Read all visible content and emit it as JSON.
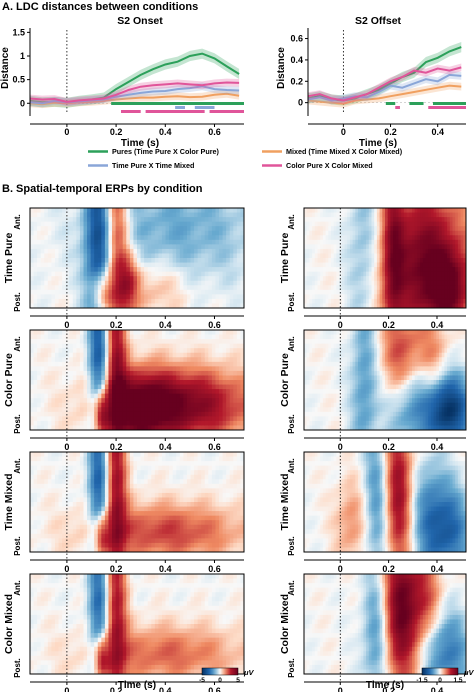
{
  "section_a": {
    "title": "A. LDC distances between conditions"
  },
  "section_b": {
    "title": "B. Spatial-temporal ERPs by condition"
  },
  "colors": {
    "pures": "#2ca05a",
    "mixed": "#f0a060",
    "time_pure_x_time_mixed": "#8aa6d8",
    "color_pure_x_color_mixed": "#e0559a",
    "heatmap_negative": "#1a5fa8",
    "heatmap_positive": "#a50d1c"
  },
  "legend": [
    {
      "label": "Pures (Time Pure X Color Pure)",
      "color_key": "pures"
    },
    {
      "label": "Mixed (Time Mixed X Color Mixed)",
      "color_key": "mixed"
    },
    {
      "label": "Time Pure X Time Mixed",
      "color_key": "time_pure_x_time_mixed"
    },
    {
      "label": "Color Pure X Color Mixed",
      "color_key": "color_pure_x_color_mixed"
    }
  ],
  "erp_rows": [
    {
      "label": "Time Pure"
    },
    {
      "label": "Color Pure"
    },
    {
      "label": "Time Mixed"
    },
    {
      "label": "Color Mixed"
    }
  ],
  "erp_ylabels": {
    "top": "Ant.",
    "bottom": "Post."
  },
  "erp_xlabel": "Time (s)",
  "colorbars": [
    {
      "min_label": "-5",
      "mid_label": "0",
      "max_label": "5",
      "unit": "μV"
    },
    {
      "min_label": "-1.5",
      "mid_label": "0",
      "max_label": "1.5",
      "unit": "μV"
    }
  ],
  "chart_data": [
    {
      "type": "line",
      "title": "S2 Onset",
      "xlabel": "Time (s)",
      "ylabel": "Distance",
      "xlim": [
        -0.15,
        0.72
      ],
      "ylim": [
        -0.1,
        1.55
      ],
      "xticks": [
        0,
        0.2,
        0.4,
        0.6
      ],
      "xtick_labels": [
        "0",
        "0.2",
        "0.4",
        "0.6"
      ],
      "yticks": [
        0,
        0.5,
        1,
        1.5
      ],
      "ytick_labels": [
        "0",
        "0.5",
        "1",
        "1.5"
      ],
      "x": [
        -0.15,
        -0.1,
        -0.05,
        0,
        0.05,
        0.1,
        0.15,
        0.2,
        0.25,
        0.3,
        0.35,
        0.4,
        0.45,
        0.5,
        0.55,
        0.6,
        0.65,
        0.7
      ],
      "series": [
        {
          "name": "Pures (Time Pure X Color Pure)",
          "color_key": "pures",
          "values": [
            0.05,
            0.02,
            0.03,
            0.01,
            0.05,
            0.08,
            0.12,
            0.3,
            0.45,
            0.6,
            0.72,
            0.82,
            0.88,
            1.0,
            1.05,
            0.95,
            0.78,
            0.62
          ]
        },
        {
          "name": "Mixed (Time Mixed X Color Mixed)",
          "color_key": "mixed",
          "values": [
            0.0,
            -0.02,
            0.01,
            0.0,
            0.02,
            0.03,
            0.05,
            0.08,
            0.1,
            0.12,
            0.12,
            0.14,
            0.15,
            0.13,
            0.14,
            0.18,
            0.2,
            0.16
          ]
        },
        {
          "name": "Time Pure X Time Mixed",
          "color_key": "time_pure_x_time_mixed",
          "values": [
            0.02,
            0.0,
            0.05,
            0.02,
            0.04,
            0.06,
            0.08,
            0.14,
            0.18,
            0.22,
            0.25,
            0.26,
            0.3,
            0.32,
            0.36,
            0.3,
            0.28,
            0.27
          ]
        },
        {
          "name": "Color Pure X Color Mixed",
          "color_key": "color_pure_x_color_mixed",
          "values": [
            0.1,
            0.08,
            0.09,
            0.03,
            0.06,
            0.08,
            0.1,
            0.18,
            0.28,
            0.35,
            0.38,
            0.4,
            0.42,
            0.4,
            0.38,
            0.42,
            0.44,
            0.43
          ]
        }
      ],
      "significance_bars": [
        {
          "color_key": "pures",
          "ranges": [
            [
              0.18,
              0.72
            ]
          ]
        },
        {
          "color_key": "time_pure_x_time_mixed",
          "ranges": [
            [
              0.44,
              0.48
            ],
            [
              0.52,
              0.6
            ]
          ]
        },
        {
          "color_key": "color_pure_x_color_mixed",
          "ranges": [
            [
              0.22,
              0.3
            ],
            [
              0.32,
              0.56
            ],
            [
              0.58,
              0.72
            ]
          ]
        }
      ]
    },
    {
      "type": "line",
      "title": "S2 Offset",
      "xlabel": "Time (s)",
      "ylabel": "Distance",
      "xlim": [
        -0.15,
        0.52
      ],
      "ylim": [
        -0.05,
        0.68
      ],
      "xticks": [
        0,
        0.2,
        0.4
      ],
      "xtick_labels": [
        "0",
        "0.2",
        "0.4"
      ],
      "yticks": [
        0,
        0.2,
        0.4,
        0.6
      ],
      "ytick_labels": [
        "0",
        "0.2",
        "0.4",
        "0.6"
      ],
      "x": [
        -0.15,
        -0.1,
        -0.05,
        0,
        0.05,
        0.1,
        0.15,
        0.2,
        0.25,
        0.3,
        0.35,
        0.4,
        0.45,
        0.5
      ],
      "series": [
        {
          "name": "Pures (Time Pure X Color Pure)",
          "color_key": "pures",
          "values": [
            0.04,
            0.06,
            0.03,
            0.02,
            0.04,
            0.08,
            0.12,
            0.18,
            0.24,
            0.28,
            0.38,
            0.42,
            0.48,
            0.52
          ]
        },
        {
          "name": "Mixed (Time Mixed X Color Mixed)",
          "color_key": "mixed",
          "values": [
            0.02,
            0.01,
            0.0,
            -0.01,
            0.02,
            0.03,
            0.04,
            0.06,
            0.08,
            0.1,
            0.12,
            0.14,
            0.16,
            0.15
          ]
        },
        {
          "name": "Time Pure X Time Mixed",
          "color_key": "time_pure_x_time_mixed",
          "values": [
            0.03,
            0.05,
            0.02,
            0.04,
            0.06,
            0.05,
            0.1,
            0.16,
            0.14,
            0.18,
            0.22,
            0.2,
            0.26,
            0.25
          ]
        },
        {
          "name": "Color Pure X Color Mixed",
          "color_key": "color_pure_x_color_mixed",
          "values": [
            0.06,
            0.08,
            0.04,
            0.02,
            0.05,
            0.08,
            0.14,
            0.2,
            0.24,
            0.3,
            0.28,
            0.32,
            0.3,
            0.33
          ]
        }
      ],
      "significance_bars": [
        {
          "color_key": "pures",
          "ranges": [
            [
              0.18,
              0.22
            ],
            [
              0.28,
              0.34
            ],
            [
              0.38,
              0.52
            ]
          ]
        },
        {
          "color_key": "color_pure_x_color_mixed",
          "ranges": [
            [
              0.22,
              0.24
            ],
            [
              0.36,
              0.52
            ]
          ]
        }
      ]
    },
    {
      "type": "heatmap",
      "title": "Time Pure — S2 Onset",
      "xlim": [
        -0.15,
        0.72
      ],
      "xticks": [
        0,
        0.2,
        0.4,
        0.6
      ],
      "xtick_labels": [
        "0",
        "0.2",
        "0.4",
        "0.6"
      ],
      "colormap": "RdBu_r",
      "clim": [
        -5,
        5
      ],
      "description": "Early blue/red bands around 0.1–0.2 s; weak broad blue near anterior 0.3–0.7 s"
    },
    {
      "type": "heatmap",
      "title": "Time Pure — S2 Offset",
      "xlim": [
        -0.15,
        0.52
      ],
      "xticks": [
        0,
        0.2,
        0.4
      ],
      "xtick_labels": [
        "0",
        "0.2",
        "0.4"
      ],
      "colormap": "RdBu_r",
      "clim": [
        -1.5,
        1.5
      ],
      "description": "Strong red from 0.2 s onward across channels"
    },
    {
      "type": "heatmap",
      "title": "Color Pure — S2 Onset",
      "xlim": [
        -0.15,
        0.72
      ],
      "xticks": [
        0,
        0.2,
        0.4,
        0.6
      ],
      "xtick_labels": [
        "0",
        "0.2",
        "0.4",
        "0.6"
      ],
      "colormap": "RdBu_r",
      "clim": [
        -5,
        5
      ],
      "description": "Broad red in posterior channels from 0.25 to 0.7 s"
    },
    {
      "type": "heatmap",
      "title": "Color Pure — S2 Offset",
      "xlim": [
        -0.15,
        0.52
      ],
      "xticks": [
        0,
        0.2,
        0.4
      ],
      "xtick_labels": [
        "0",
        "0.2",
        "0.4"
      ],
      "colormap": "RdBu_r",
      "clim": [
        -1.5,
        1.5
      ],
      "description": "Red anterior / blue posterior after 0.2 s"
    },
    {
      "type": "heatmap",
      "title": "Time Mixed — S2 Onset",
      "xlim": [
        -0.15,
        0.72
      ],
      "xticks": [
        0,
        0.2,
        0.4,
        0.6
      ],
      "xtick_labels": [
        "0",
        "0.2",
        "0.4",
        "0.6"
      ],
      "colormap": "RdBu_r",
      "clim": [
        -5,
        5
      ],
      "description": "Early transient bands, moderate posterior red after 0.2 s"
    },
    {
      "type": "heatmap",
      "title": "Time Mixed — S2 Offset",
      "xlim": [
        -0.15,
        0.52
      ],
      "xticks": [
        0,
        0.2,
        0.4
      ],
      "xtick_labels": [
        "0",
        "0.2",
        "0.4"
      ],
      "colormap": "RdBu_r",
      "clim": [
        -1.5,
        1.5
      ],
      "description": "Red around 0.2–0.3 s, blue patches later"
    },
    {
      "type": "heatmap",
      "title": "Color Mixed — S2 Onset",
      "xlim": [
        -0.15,
        0.72
      ],
      "xticks": [
        0,
        0.2,
        0.4,
        0.6
      ],
      "xtick_labels": [
        "0",
        "0.2",
        "0.4",
        "0.6"
      ],
      "colormap": "RdBu_r",
      "clim": [
        -5,
        5
      ],
      "description": "Early transient bands, weak posterior red after 0.25 s"
    },
    {
      "type": "heatmap",
      "title": "Color Mixed — S2 Offset",
      "xlim": [
        -0.15,
        0.52
      ],
      "xticks": [
        0,
        0.2,
        0.4
      ],
      "xtick_labels": [
        "0",
        "0.2",
        "0.4"
      ],
      "colormap": "RdBu_r",
      "clim": [
        -1.5,
        1.5
      ],
      "description": "Strong red around 0.22–0.32 s, blue posterior later"
    }
  ]
}
